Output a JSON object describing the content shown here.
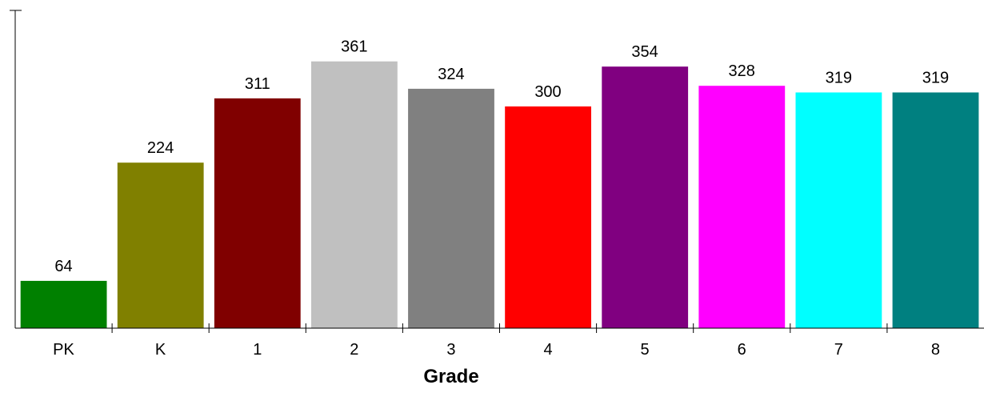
{
  "chart_data": {
    "type": "bar",
    "title": "",
    "xlabel": "Grade",
    "ylabel": "",
    "categories": [
      "PK",
      "K",
      "1",
      "2",
      "3",
      "4",
      "5",
      "6",
      "7",
      "8"
    ],
    "values": [
      64,
      224,
      311,
      361,
      324,
      300,
      354,
      328,
      319,
      319
    ],
    "colors": [
      "#008000",
      "#808000",
      "#800000",
      "#c0c0c0",
      "#808080",
      "#ff0000",
      "#800080",
      "#ff00ff",
      "#00ffff",
      "#008080"
    ],
    "ylim": [
      0,
      430
    ],
    "grid": false,
    "legend": "none"
  }
}
